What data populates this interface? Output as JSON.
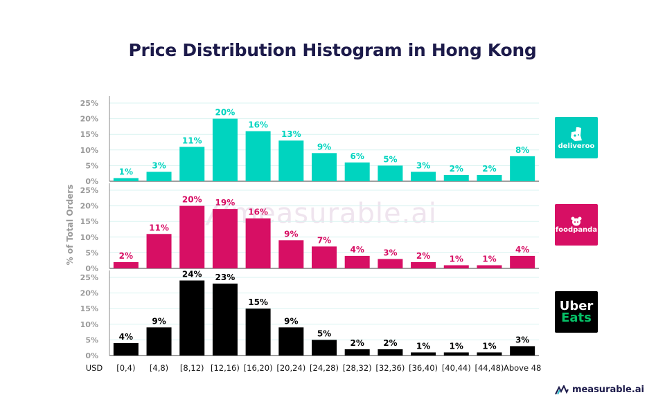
{
  "title": "Price Distribution Histogram in Hong Kong",
  "brand": "measurable.ai",
  "watermark": "measurable.ai",
  "logos": {
    "deliveroo": "deliveroo",
    "foodpanda": "foodpanda",
    "ubereats_top": "Uber",
    "ubereats_bottom": "Eats"
  },
  "colors": {
    "deliveroo": "#00d4bf",
    "foodpanda": "#d70f64",
    "ubereats": "#000000",
    "title": "#1c1a4a",
    "axis_text": "#9a9a9a",
    "grid": "#d9f3f1"
  },
  "chart_data": {
    "type": "bar",
    "ylabel": "% of Total Orders",
    "x_axis_unit": "USD",
    "categories": [
      "[0,4)",
      "[4,8)",
      "[8,12)",
      "[12,16)",
      "[16,20)",
      "[20,24)",
      "[24,28)",
      "[28,32)",
      "[32,36)",
      "[36,40)",
      "[40,44)",
      "[44,48)",
      "Above 48"
    ],
    "ylim": [
      0,
      25
    ],
    "yticks": [
      0,
      5,
      10,
      15,
      20,
      25
    ],
    "ytick_labels": [
      "0%",
      "5%",
      "10%",
      "15%",
      "20%",
      "25%"
    ],
    "grid": true,
    "series": [
      {
        "name": "deliveroo",
        "color": "#00d4bf",
        "values": [
          1,
          3,
          11,
          20,
          16,
          13,
          9,
          6,
          5,
          3,
          2,
          2,
          8
        ],
        "labels": [
          "1%",
          "3%",
          "11%",
          "20%",
          "16%",
          "13%",
          "9%",
          "6%",
          "5%",
          "3%",
          "2%",
          "2%",
          "8%"
        ]
      },
      {
        "name": "foodpanda",
        "color": "#d70f64",
        "values": [
          2,
          11,
          20,
          19,
          16,
          9,
          7,
          4,
          3,
          2,
          1,
          1,
          4
        ],
        "labels": [
          "2%",
          "11%",
          "20%",
          "19%",
          "16%",
          "9%",
          "7%",
          "4%",
          "3%",
          "2%",
          "1%",
          "1%",
          "4%"
        ]
      },
      {
        "name": "Uber Eats",
        "color": "#000000",
        "values": [
          4,
          9,
          24,
          23,
          15,
          9,
          5,
          2,
          2,
          1,
          1,
          1,
          3
        ],
        "labels": [
          "4%",
          "9%",
          "24%",
          "23%",
          "15%",
          "9%",
          "5%",
          "2%",
          "2%",
          "1%",
          "1%",
          "1%",
          "3%"
        ]
      }
    ]
  }
}
